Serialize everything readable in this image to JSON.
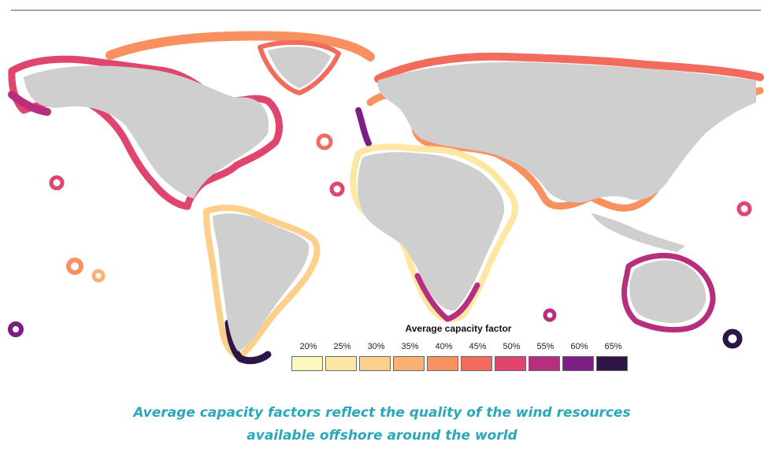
{
  "legend": {
    "title": "Average capacity factor",
    "items": [
      {
        "label": "20%",
        "color": "#fbf7bf"
      },
      {
        "label": "25%",
        "color": "#fde7a3"
      },
      {
        "label": "30%",
        "color": "#fcd08a"
      },
      {
        "label": "35%",
        "color": "#fbb073"
      },
      {
        "label": "40%",
        "color": "#f8915f"
      },
      {
        "label": "45%",
        "color": "#f36b5c"
      },
      {
        "label": "50%",
        "color": "#e0456e"
      },
      {
        "label": "55%",
        "color": "#b82e7e"
      },
      {
        "label": "60%",
        "color": "#7d1d86"
      },
      {
        "label": "65%",
        "color": "#2e1548"
      }
    ]
  },
  "caption": {
    "line1": "Average capacity factors reflect the quality of the wind resources",
    "line2": "available offshore around the world"
  },
  "colors": {
    "land": "#cfcfcf",
    "caption": "#2aa7b8",
    "rule": "#a8a8a8"
  }
}
